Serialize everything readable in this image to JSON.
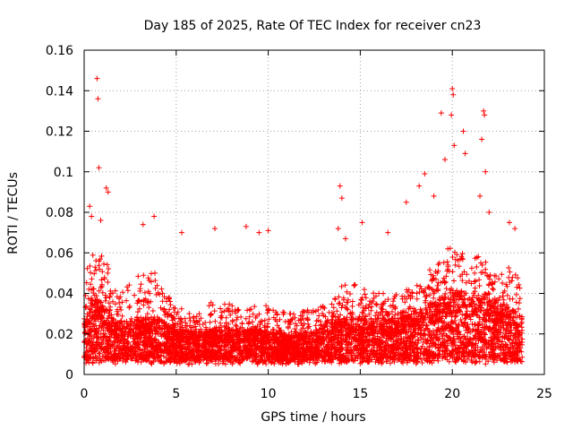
{
  "chart_data": {
    "type": "scatter",
    "title": "Day 185 of 2025, Rate Of TEC Index for receiver cn23",
    "xlabel": "GPS time / hours",
    "ylabel": "ROTI / TECUs",
    "xlim": [
      0,
      25
    ],
    "ylim": [
      0,
      0.16
    ],
    "xticks": [
      "0",
      "5",
      "10",
      "15",
      "20",
      "25"
    ],
    "yticks": [
      "0",
      "0.02",
      "0.04",
      "0.06",
      "0.08",
      "0.1",
      "0.12",
      "0.14",
      "0.16"
    ],
    "grid": true,
    "marker": "+",
    "color": "#ff0000",
    "envelope_hours": [
      0,
      0.5,
      1,
      1.5,
      2,
      2.5,
      3,
      3.5,
      4,
      4.5,
      5,
      5.5,
      6,
      6.5,
      7,
      7.5,
      8,
      8.5,
      9,
      9.5,
      10,
      10.5,
      11,
      11.5,
      12,
      12.5,
      13,
      13.5,
      14,
      14.5,
      15,
      15.5,
      16,
      16.5,
      17,
      17.5,
      18,
      18.5,
      19,
      19.5,
      20,
      20.5,
      21,
      21.5,
      22,
      22.5,
      23,
      23.5,
      23.8
    ],
    "envelope_median": [
      0.02,
      0.028,
      0.025,
      0.02,
      0.018,
      0.019,
      0.02,
      0.02,
      0.02,
      0.018,
      0.016,
      0.016,
      0.015,
      0.015,
      0.016,
      0.016,
      0.016,
      0.016,
      0.016,
      0.016,
      0.015,
      0.015,
      0.014,
      0.014,
      0.015,
      0.016,
      0.017,
      0.018,
      0.02,
      0.02,
      0.021,
      0.02,
      0.02,
      0.02,
      0.02,
      0.021,
      0.022,
      0.024,
      0.026,
      0.028,
      0.03,
      0.03,
      0.028,
      0.028,
      0.026,
      0.025,
      0.024,
      0.022,
      0.02
    ],
    "envelope_upper": [
      0.05,
      0.06,
      0.06,
      0.05,
      0.045,
      0.045,
      0.05,
      0.05,
      0.05,
      0.04,
      0.035,
      0.032,
      0.03,
      0.03,
      0.038,
      0.035,
      0.035,
      0.032,
      0.035,
      0.033,
      0.035,
      0.032,
      0.03,
      0.03,
      0.032,
      0.033,
      0.035,
      0.036,
      0.045,
      0.045,
      0.045,
      0.04,
      0.042,
      0.04,
      0.04,
      0.042,
      0.045,
      0.048,
      0.055,
      0.06,
      0.065,
      0.06,
      0.058,
      0.06,
      0.055,
      0.05,
      0.055,
      0.05,
      0.045
    ],
    "outliers": [
      {
        "x": 0.7,
        "y": 0.146
      },
      {
        "x": 0.75,
        "y": 0.136
      },
      {
        "x": 0.8,
        "y": 0.102
      },
      {
        "x": 1.2,
        "y": 0.092
      },
      {
        "x": 1.3,
        "y": 0.09
      },
      {
        "x": 0.3,
        "y": 0.083
      },
      {
        "x": 0.4,
        "y": 0.078
      },
      {
        "x": 0.9,
        "y": 0.076
      },
      {
        "x": 3.2,
        "y": 0.074
      },
      {
        "x": 3.8,
        "y": 0.078
      },
      {
        "x": 5.3,
        "y": 0.07
      },
      {
        "x": 7.1,
        "y": 0.072
      },
      {
        "x": 8.8,
        "y": 0.073
      },
      {
        "x": 9.5,
        "y": 0.07
      },
      {
        "x": 10.0,
        "y": 0.071
      },
      {
        "x": 13.9,
        "y": 0.093
      },
      {
        "x": 14.0,
        "y": 0.087
      },
      {
        "x": 13.8,
        "y": 0.072
      },
      {
        "x": 14.2,
        "y": 0.067
      },
      {
        "x": 15.1,
        "y": 0.075
      },
      {
        "x": 16.5,
        "y": 0.07
      },
      {
        "x": 17.5,
        "y": 0.085
      },
      {
        "x": 18.2,
        "y": 0.093
      },
      {
        "x": 18.5,
        "y": 0.099
      },
      {
        "x": 19.4,
        "y": 0.129
      },
      {
        "x": 19.6,
        "y": 0.106
      },
      {
        "x": 19.0,
        "y": 0.088
      },
      {
        "x": 20.0,
        "y": 0.141
      },
      {
        "x": 20.05,
        "y": 0.138
      },
      {
        "x": 19.95,
        "y": 0.128
      },
      {
        "x": 20.1,
        "y": 0.113
      },
      {
        "x": 20.6,
        "y": 0.12
      },
      {
        "x": 20.7,
        "y": 0.109
      },
      {
        "x": 21.7,
        "y": 0.13
      },
      {
        "x": 21.75,
        "y": 0.128
      },
      {
        "x": 21.6,
        "y": 0.116
      },
      {
        "x": 21.8,
        "y": 0.1
      },
      {
        "x": 21.5,
        "y": 0.088
      },
      {
        "x": 22.0,
        "y": 0.08
      },
      {
        "x": 23.1,
        "y": 0.075
      },
      {
        "x": 23.4,
        "y": 0.072
      }
    ]
  }
}
